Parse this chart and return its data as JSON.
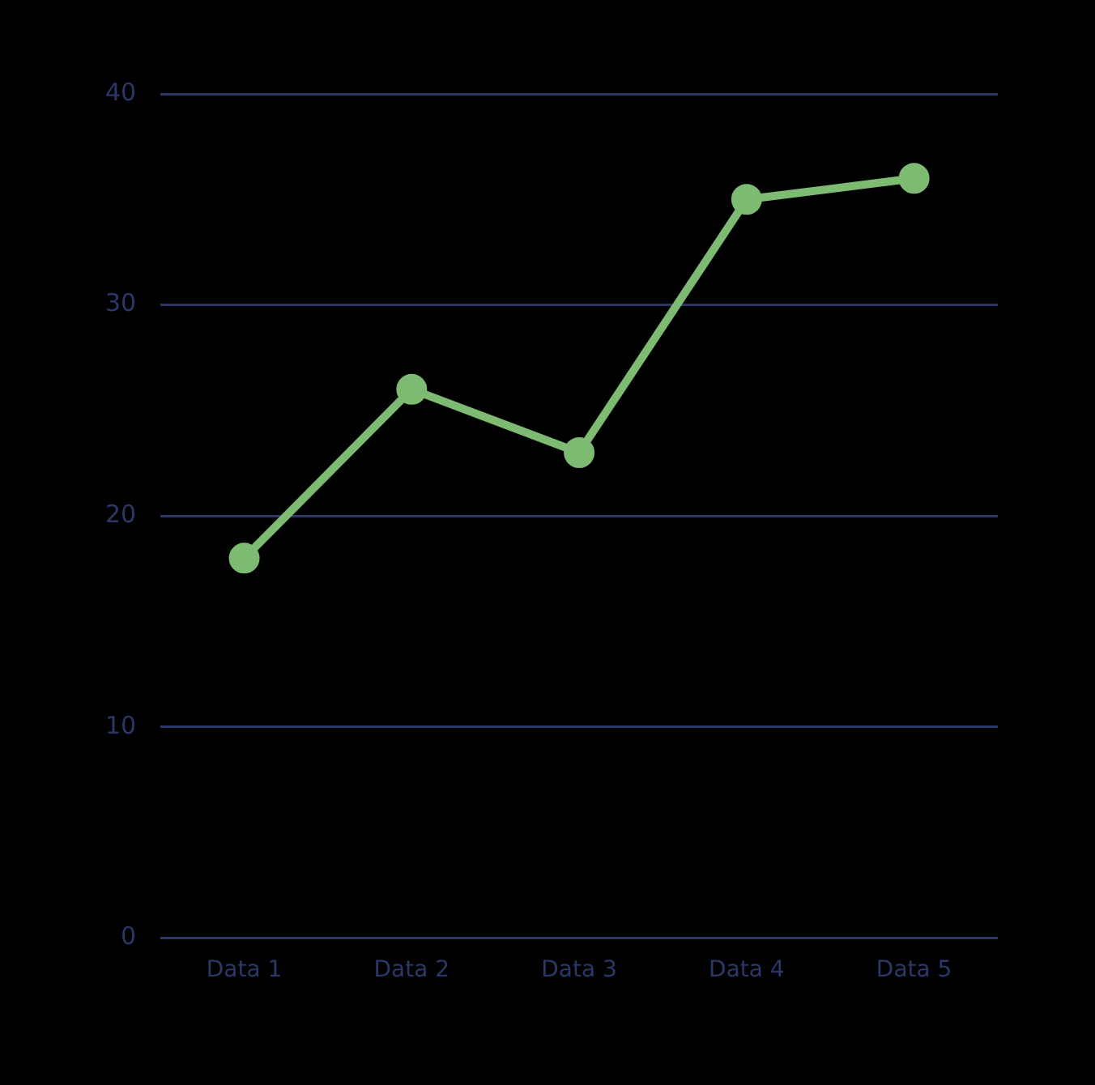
{
  "chart_data": {
    "type": "line",
    "categories": [
      "Data 1",
      "Data 2",
      "Data 3",
      "Data 4",
      "Data 5"
    ],
    "series": [
      {
        "color": "#7dbb72",
        "values": [
          18,
          26,
          23,
          35,
          36
        ]
      }
    ],
    "ylim": [
      0,
      40
    ],
    "yticks": [
      0,
      10,
      20,
      30,
      40
    ],
    "grid": "y",
    "marker": "circle",
    "line_style": "solid",
    "legend": false
  }
}
